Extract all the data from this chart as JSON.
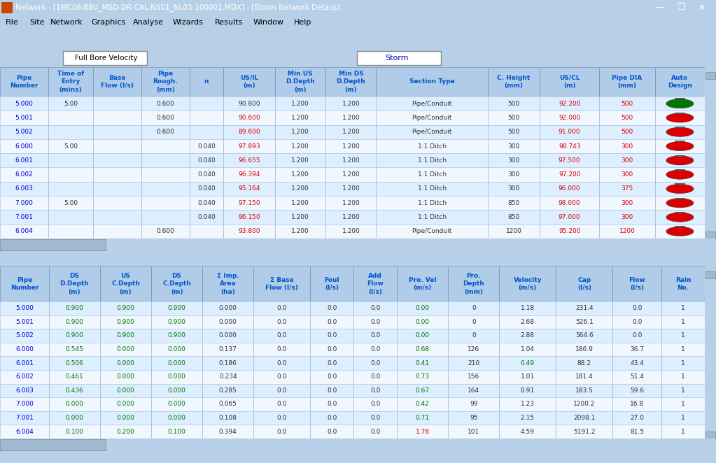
{
  "title": "Network - [1MC08-BBV_MSD-DR-CAL-NS01_NL03-100001.MDX] - [Storm Network Details]",
  "menubar": [
    "File",
    "Site",
    "Network",
    "Graphics",
    "Analyse",
    "Wizards",
    "Results",
    "Window",
    "Help"
  ],
  "storm_label": "Storm",
  "fullbore_label": "Full Bore Velocity",
  "bg_color": "#c8daf0",
  "table1_header": [
    "Pipe\nNumber",
    "Time of\nEntry\n(mins)",
    "Base\nFlow (l/s)",
    "Pipe\nRough.\n(mm)",
    "n",
    "US/IL\n(m)",
    "Min US\nD.Depth\n(m)",
    "Min DS\nD.Depth\n(m)",
    "Section Type",
    "C. Height\n(mm)",
    "US/CL\n(m)",
    "Pipe DIA\n(mm)",
    "Auto\nDesign"
  ],
  "table1_rows": [
    [
      "5.000",
      "5.00",
      "",
      "0.600",
      "",
      "90.800",
      "1.200",
      "1.200",
      "Pipe/Conduit",
      "500",
      "92.200",
      "500",
      "G"
    ],
    [
      "5.001",
      "",
      "",
      "0.600",
      "",
      "90.600",
      "1.200",
      "1.200",
      "Pipe/Conduit",
      "500",
      "92.000",
      "500",
      "R"
    ],
    [
      "5.002",
      "",
      "",
      "0.600",
      "",
      "89.600",
      "1.200",
      "1.200",
      "Pipe/Conduit",
      "500",
      "91.000",
      "500",
      "R"
    ],
    [
      "6.000",
      "5.00",
      "",
      "",
      "0.040",
      "97.893",
      "1.200",
      "1.200",
      "1:1 Ditch",
      "300",
      "98.743",
      "300",
      "R"
    ],
    [
      "6.001",
      "",
      "",
      "",
      "0.040",
      "96.655",
      "1.200",
      "1.200",
      "1:1 Ditch",
      "300",
      "97.500",
      "300",
      "R"
    ],
    [
      "6.002",
      "",
      "",
      "",
      "0.040",
      "96.394",
      "1.200",
      "1.200",
      "1:1 Ditch",
      "300",
      "97.200",
      "300",
      "R"
    ],
    [
      "6.003",
      "",
      "",
      "",
      "0.040",
      "95.164",
      "1.200",
      "1.200",
      "1:1 Ditch",
      "300",
      "96.000",
      "375",
      "R"
    ],
    [
      "7.000",
      "5.00",
      "",
      "",
      "0.040",
      "97.150",
      "1.200",
      "1.200",
      "1:1 Ditch",
      "850",
      "98.000",
      "300",
      "R"
    ],
    [
      "7.001",
      "",
      "",
      "",
      "0.040",
      "96.150",
      "1.200",
      "1.200",
      "1:1 Ditch",
      "850",
      "97.000",
      "300",
      "R"
    ],
    [
      "6.004",
      "",
      "",
      "0.600",
      "",
      "93.800",
      "1.200",
      "1.200",
      "Pipe/Conduit",
      "1200",
      "95.200",
      "1200",
      "R"
    ]
  ],
  "table1_usil_red": [
    false,
    true,
    true,
    true,
    true,
    true,
    true,
    true,
    true,
    true
  ],
  "table2_header": [
    "Pipe\nNumber",
    "DS\nD.Depth\n(m)",
    "US\nC.Depth\n(m)",
    "DS\nC.Depth\n(m)",
    "Σ Imp.\nArea\n(ha)",
    "Σ Base\nFlow (l/s)",
    "Foul\n(l/s)",
    "Add\nFlow\n(l/s)",
    "Pro. Vel\n(m/s)",
    "Pro.\nDepth\n(mm)",
    "Velocity\n(m/s)",
    "Cap\n(l/s)",
    "Flow\n(l/s)",
    "Rain\nNo."
  ],
  "table2_rows": [
    [
      "5.000",
      "0.900",
      "0.900",
      "0.900",
      "0.000",
      "0.0",
      "0.0",
      "0.0",
      "0.00",
      "0",
      "1.18",
      "231.4",
      "0.0",
      "1"
    ],
    [
      "5.001",
      "0.900",
      "0.900",
      "0.900",
      "0.000",
      "0.0",
      "0.0",
      "0.0",
      "0.00",
      "0",
      "2.68",
      "526.1",
      "0.0",
      "1"
    ],
    [
      "5.002",
      "0.900",
      "0.900",
      "0.900",
      "0.000",
      "0.0",
      "0.0",
      "0.0",
      "0.00",
      "0",
      "2.88",
      "564.6",
      "0.0",
      "1"
    ],
    [
      "6.000",
      "0.545",
      "0.000",
      "0.000",
      "0.137",
      "0.0",
      "0.0",
      "0.0",
      "0.68",
      "126",
      "1.04",
      "186.9",
      "36.7",
      "1"
    ],
    [
      "6.001",
      "0.506",
      "0.000",
      "0.000",
      "0.186",
      "0.0",
      "0.0",
      "0.0",
      "0.41",
      "210",
      "0.49",
      "88.2",
      "43.4",
      "1"
    ],
    [
      "6.002",
      "0.461",
      "0.000",
      "0.000",
      "0.234",
      "0.0",
      "0.0",
      "0.0",
      "0.73",
      "156",
      "1.01",
      "181.4",
      "51.4",
      "1"
    ],
    [
      "6.003",
      "0.436",
      "0.000",
      "0.000",
      "0.285",
      "0.0",
      "0.0",
      "0.0",
      "0.67",
      "164",
      "0.91",
      "183.5",
      "59.6",
      "1"
    ],
    [
      "7.000",
      "0.000",
      "0.000",
      "0.000",
      "0.065",
      "0.0",
      "0.0",
      "0.0",
      "0.42",
      "99",
      "1.23",
      "1200.2",
      "16.8",
      "1"
    ],
    [
      "7.001",
      "0.000",
      "0.000",
      "0.000",
      "0.108",
      "0.0",
      "0.0",
      "0.0",
      "0.71",
      "95",
      "2.15",
      "2098.1",
      "27.0",
      "1"
    ],
    [
      "6.004",
      "0.100",
      "0.200",
      "0.100",
      "0.394",
      "0.0",
      "0.0",
      "0.0",
      "1.76",
      "101",
      "4.59",
      "5191.2",
      "81.5",
      "1"
    ]
  ],
  "t2_prvel_green": [
    true,
    true,
    true,
    true,
    true,
    true,
    true,
    true,
    true,
    false
  ],
  "t2_vel_green": [
    false,
    false,
    false,
    false,
    true,
    false,
    false,
    false,
    false,
    false
  ],
  "header_text_color": "#0055cc",
  "pipe_num_color": "#0000dd",
  "red_color": "#dd0000",
  "green_color": "#007700",
  "black_color": "#333333",
  "table_bg": "#ffffff",
  "header_bg": "#b0cce8",
  "row_bg_even": "#ddeeff",
  "row_bg_odd": "#f0f7ff",
  "scrollbar_bg": "#c8d8e8",
  "scrollbar_thumb": "#a0b8d0",
  "window_bg": "#b8cfe8",
  "titlebar_bg": "#000080",
  "titlebar_fg": "#ffffff",
  "menubar_bg": "#c8daf0"
}
